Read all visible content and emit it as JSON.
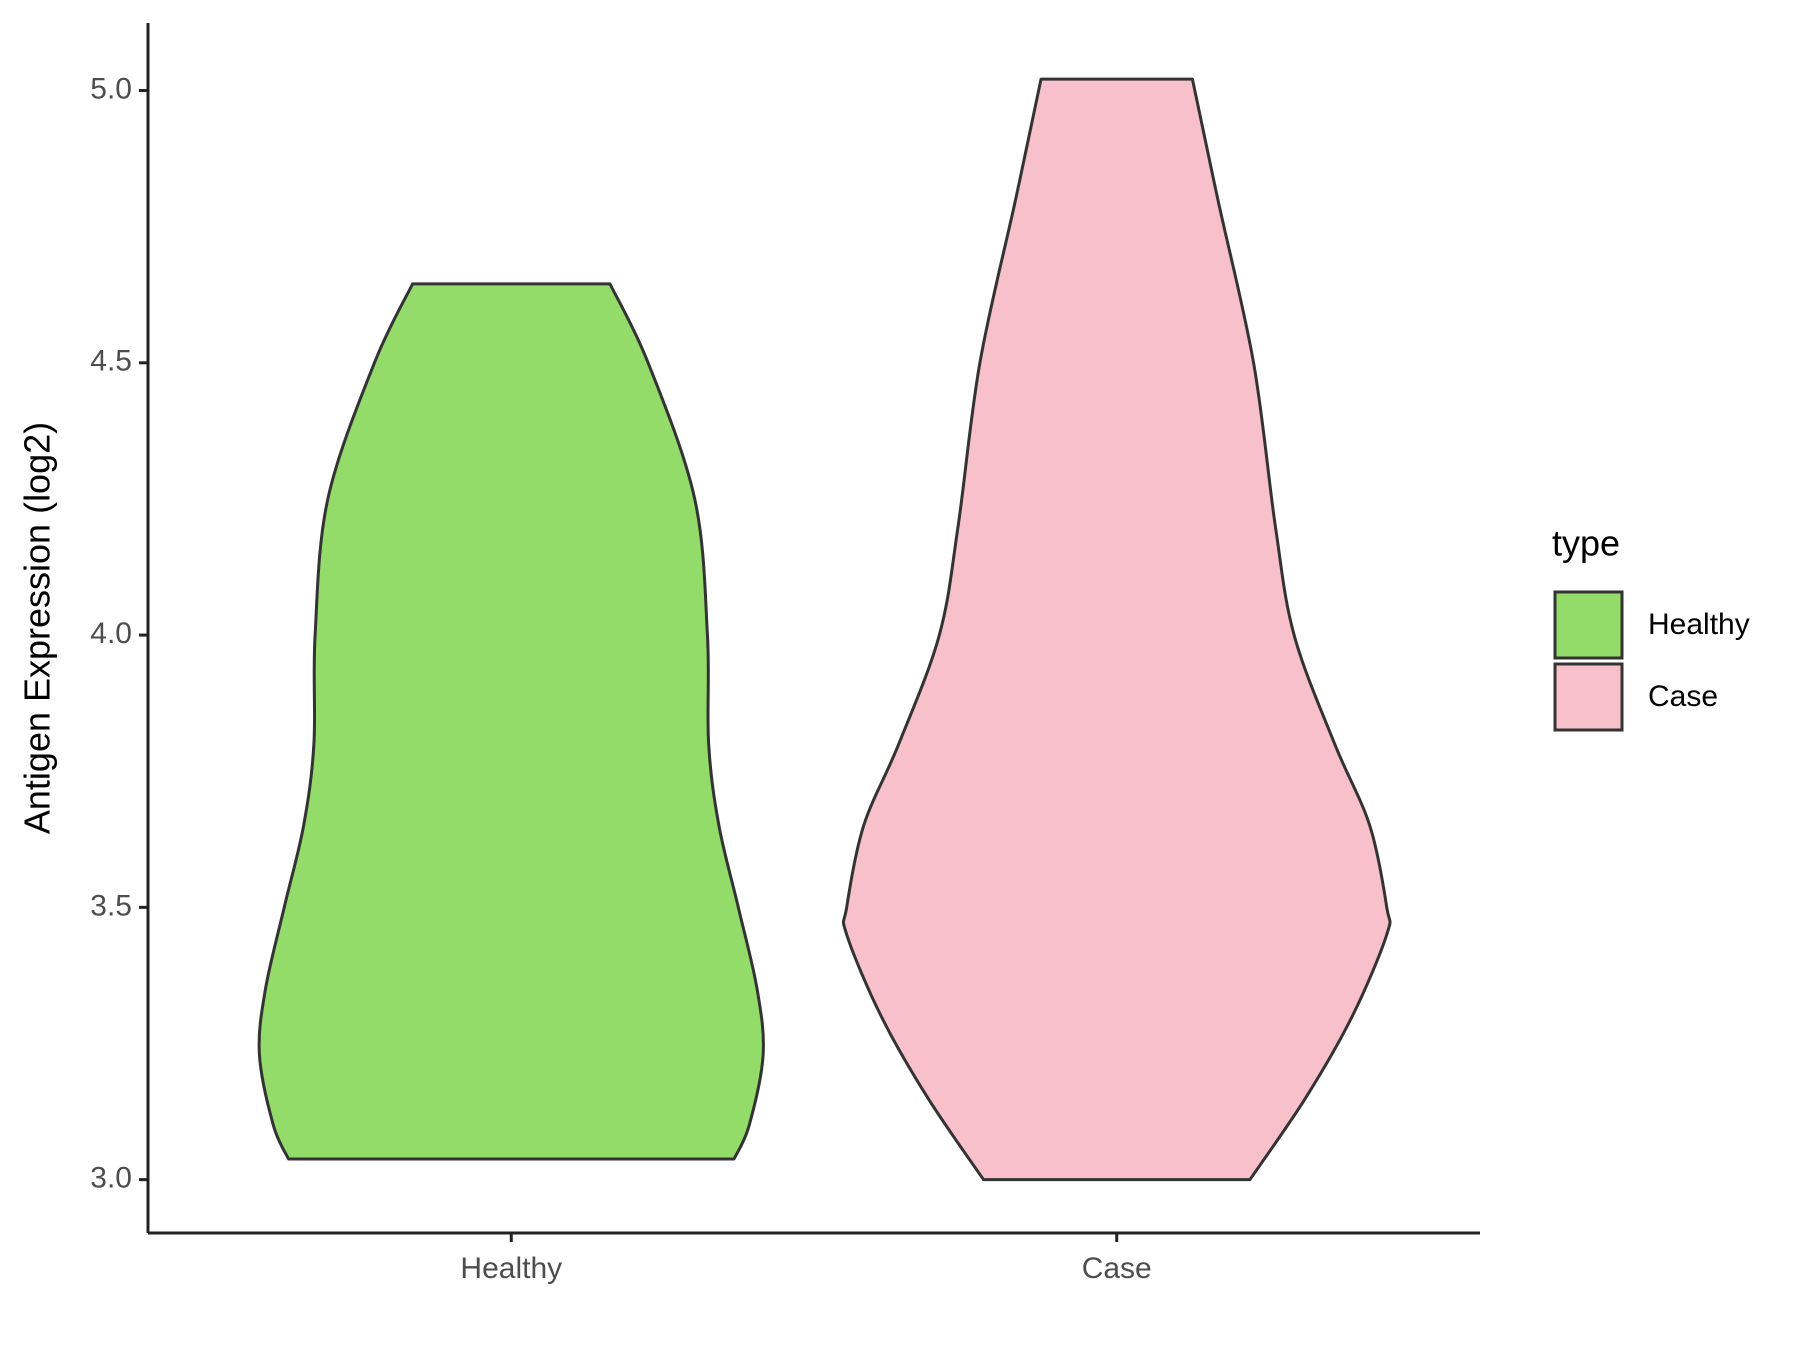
{
  "chart_data": {
    "type": "violin",
    "y_label": "Antigen Expression (log2)",
    "categories": [
      "Healthy",
      "Case"
    ],
    "ylim": [
      2.902,
      5.124
    ],
    "yticks": [
      {
        "value": 3,
        "label": "3.0"
      },
      {
        "value": 3.5,
        "label": "3.5"
      },
      {
        "value": 4,
        "label": "4.0"
      },
      {
        "value": 4.5,
        "label": "4.5"
      },
      {
        "value": 5,
        "label": "5.0"
      }
    ],
    "legend_title": "type",
    "legend_position": "right",
    "series": [
      {
        "name": "Healthy",
        "color": "#93dc6a",
        "y": [
          4.645,
          4.5,
          4.25,
          4.0,
          3.8,
          3.65,
          3.5,
          3.35,
          3.23,
          3.1,
          3.038
        ],
        "width": [
          0.163,
          0.226,
          0.303,
          0.324,
          0.326,
          0.343,
          0.375,
          0.406,
          0.416,
          0.393,
          0.368
        ]
      },
      {
        "name": "Case",
        "color": "#f7c0cb",
        "y": [
          5.021,
          4.8,
          4.5,
          4.2,
          4.0,
          3.8,
          3.65,
          3.5,
          3.45,
          3.3,
          3.15,
          3.0
        ],
        "width": [
          0.125,
          0.167,
          0.226,
          0.262,
          0.293,
          0.36,
          0.418,
          0.446,
          0.446,
          0.389,
          0.312,
          0.22
        ]
      }
    ]
  }
}
